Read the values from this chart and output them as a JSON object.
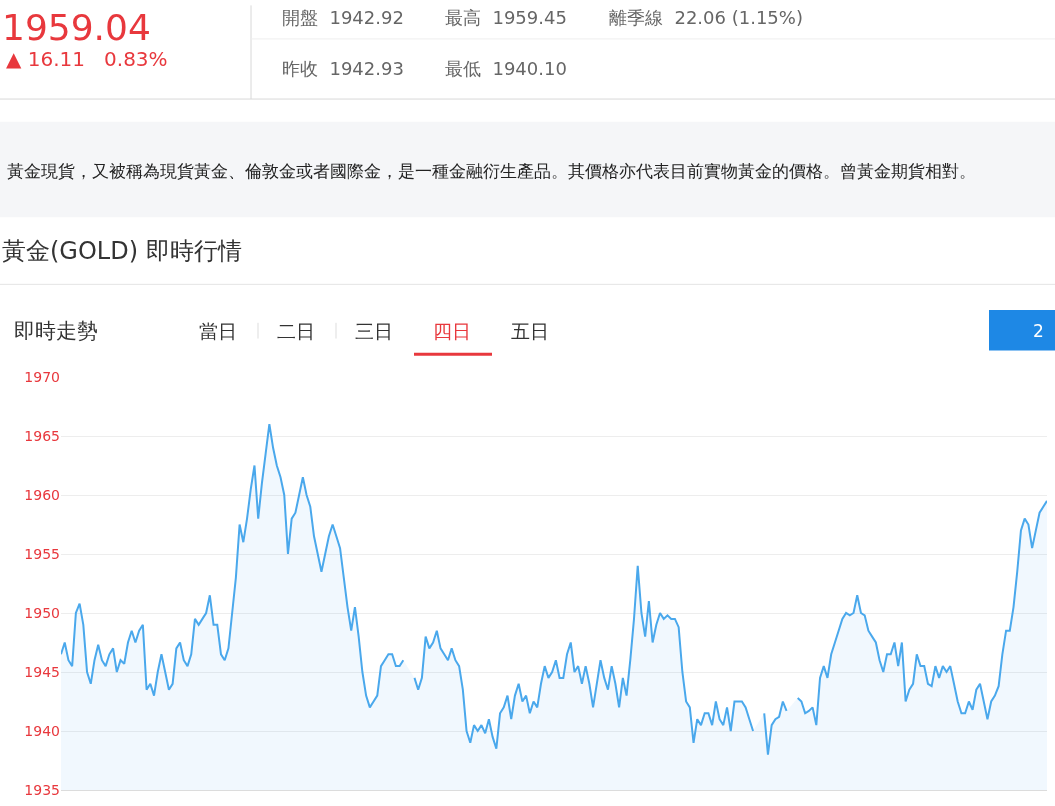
{
  "chart_data": {
    "type": "area",
    "title": "黃金(GOLD) 即時行情",
    "subtitle": "黃金現貨，又被稱為現貨黃金、倫敦金或者國際金，是一種金融衍生產品。其價格亦代表目前實物黃金的價格。曾黃金期貨相對。",
    "annotations": [
      "1959.04",
      "▲ 16.11   0.83%",
      "開盤  1942.92",
      "最高  1959.45",
      "離季線  22.06 (1.15%)",
      "昨收  1942.93",
      "最低  1940.10",
      "即時走勢",
      "當日",
      "二日",
      "三日",
      "四日",
      "五日",
      "2"
    ],
    "categories": [
      null,
      null,
      null,
      null,
      null,
      null,
      null,
      null,
      null,
      null,
      null,
      null,
      null,
      null,
      null,
      null,
      null,
      null,
      null,
      null,
      null,
      null,
      null,
      null,
      null,
      null,
      null,
      null,
      null,
      null,
      null,
      null,
      null,
      null,
      null,
      null,
      null,
      null,
      null,
      null,
      null,
      null,
      null,
      null,
      null,
      null,
      null,
      null,
      null,
      null,
      null,
      null,
      null,
      null,
      null,
      null,
      null,
      null,
      null,
      null,
      null,
      null,
      null,
      null,
      null,
      null,
      null,
      null,
      null,
      null,
      null,
      null,
      null,
      null,
      null,
      null,
      null,
      null,
      null,
      null,
      null,
      null,
      null,
      null,
      null,
      null,
      null,
      null,
      null,
      null,
      null,
      null,
      null,
      null,
      null,
      null,
      null,
      null,
      null,
      null,
      null,
      null,
      null,
      null,
      null,
      null,
      null,
      null,
      null,
      null,
      null,
      null,
      null,
      null,
      null,
      null,
      null,
      null,
      null,
      null,
      null,
      null,
      null,
      null,
      null,
      null,
      null,
      null,
      null,
      null,
      null,
      null,
      null,
      null,
      null,
      null,
      null,
      null,
      null,
      null,
      null,
      null,
      null,
      null,
      null,
      null,
      null,
      null,
      null,
      null,
      null,
      null,
      null,
      null,
      null,
      null,
      null,
      null,
      null,
      null,
      null,
      null,
      null,
      null,
      null,
      null,
      null,
      null,
      null,
      null,
      null,
      null,
      null,
      null,
      null,
      null,
      null,
      null,
      null,
      null,
      null,
      null,
      null,
      null,
      null,
      null,
      null,
      null,
      null,
      null,
      null,
      null,
      null,
      null,
      null,
      null,
      null,
      null,
      null,
      null,
      null,
      null,
      null,
      null,
      null,
      null,
      null,
      null,
      null,
      null,
      null,
      null,
      null,
      null,
      null,
      null,
      null,
      null,
      null,
      null,
      null,
      null,
      null,
      null,
      null,
      null,
      null,
      null,
      null,
      null,
      null,
      null,
      null,
      null,
      null,
      null,
      null,
      null,
      null,
      null,
      null,
      null,
      null,
      null,
      null,
      null,
      null,
      null,
      null,
      null,
      null,
      null,
      null,
      null,
      null,
      null,
      null,
      null,
      null,
      null,
      null,
      null,
      null,
      null,
      null,
      null
    ],
    "series": [
      {
        "color": "#4aa8ec",
        "values": [
          1946.5,
          1947.5,
          1946,
          1945.5,
          1950,
          1950.8,
          1949,
          1945,
          1944,
          1946,
          1947.3,
          1946,
          1945.5,
          1946.5,
          1947,
          1945,
          1946,
          1945.7,
          1947.5,
          1948.5,
          1947.5,
          1948.5,
          1949,
          1943.5,
          1944,
          1943,
          1945,
          1946.5,
          1945,
          1943.5,
          1944,
          1947,
          1947.5,
          1946,
          1945.5,
          1946.5,
          1949.5,
          1949,
          1949.5,
          1950,
          1951.5,
          1949,
          1949,
          1946.5,
          1946,
          1947,
          1950,
          1953,
          1957.5,
          1956,
          1958,
          1960.5,
          1962.5,
          1958,
          1961,
          1963.5,
          1966,
          1964,
          1962.5,
          1961.5,
          1960,
          1955,
          1958,
          1958.5,
          1960,
          1961.5,
          1960,
          1959,
          1956.5,
          1955,
          1953.5,
          1955,
          1956.5,
          1957.5,
          1956.5,
          1955.5,
          1953,
          1950.5,
          1948.5,
          1950.5,
          1948,
          1945,
          1943,
          1942,
          1942.5,
          1943,
          1945.5,
          1946,
          1946.5,
          1946.5,
          1945.5,
          1945.5,
          1946,
          null,
          null,
          1944.5,
          1943.5,
          1944.5,
          1948,
          1947,
          1947.5,
          1948.5,
          1947,
          1946.5,
          1946,
          1947,
          1946,
          1945.5,
          1943.5,
          1940,
          1939,
          1940.5,
          1940,
          1940.5,
          1939.8,
          1941,
          1939.5,
          1938.5,
          1941.5,
          1942,
          1943,
          1941,
          1943,
          1944,
          1942.5,
          1943,
          1941.5,
          1942.5,
          1942,
          1944,
          1945.5,
          1944.5,
          1945,
          1946,
          1944.5,
          1944.5,
          1946.5,
          1947.5,
          1945,
          1945.5,
          1944,
          1945.5,
          1944,
          1942,
          1944,
          1946,
          1944.5,
          1943.5,
          1945.5,
          1944,
          1942,
          1944.5,
          1943,
          1946,
          1949.5,
          1954,
          1950,
          1948,
          1951,
          1947.5,
          1949,
          1950,
          1949.5,
          1949.8,
          1949.5,
          1949.5,
          1948.8,
          1945,
          1942.5,
          1942,
          1939,
          1941,
          1940.5,
          1941.5,
          1941.5,
          1940.5,
          1942.5,
          1941,
          1940.5,
          1942,
          1940,
          1942.5,
          1942.5,
          1942.5,
          1942,
          1941,
          1940,
          null,
          null,
          1941.5,
          1938,
          1940.5,
          1941,
          1941.2,
          1942.5,
          1941.7,
          null,
          null,
          1942.8,
          1942.5,
          1941.5,
          1941.7,
          1942,
          1940.5,
          1944.5,
          1945.5,
          1944.5,
          1946.5,
          1947.5,
          1948.5,
          1949.5,
          1950,
          1949.8,
          1950,
          1951.5,
          1950,
          1949.8,
          1948.5,
          1948,
          1947.5,
          1946,
          1945,
          1946.5,
          1946.5,
          1947.5,
          1945.5,
          1947.5,
          1942.5,
          1943.5,
          1944,
          1946.5,
          1945.5,
          1945.5,
          1944,
          1943.8,
          1945.5,
          1944.5,
          1945.5,
          1945,
          1945.5,
          1944,
          1942.5,
          1941.5,
          1941.5,
          1942.5,
          1941.8,
          1943.5,
          1944,
          1942.5,
          1941,
          1942.5,
          1943,
          1943.8,
          1946.5,
          1948.5,
          1948.5,
          1950.5,
          1953.5,
          1957,
          1958,
          1957.5,
          1955.5,
          1957,
          1958.5,
          1959,
          1959.5
        ]
      }
    ],
    "ylim": [
      1935,
      1970
    ],
    "yticks": [
      1935,
      1940,
      1945,
      1950,
      1955,
      1960,
      1965,
      1970
    ],
    "grid": "y",
    "tick_labels": "y"
  }
}
